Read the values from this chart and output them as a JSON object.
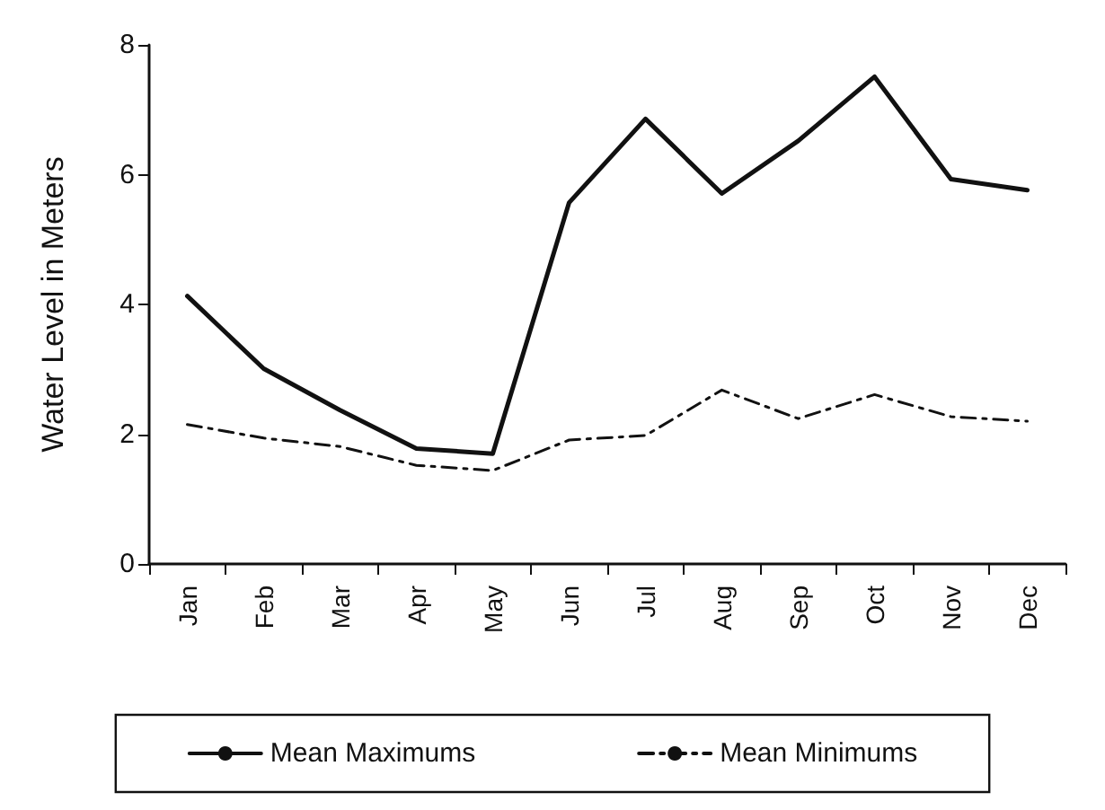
{
  "chart_data": {
    "type": "line",
    "ylabel": "Water Level in Meters",
    "categories": [
      "Jan",
      "Feb",
      "Mar",
      "Apr",
      "May",
      "Jun",
      "Jul",
      "Aug",
      "Sep",
      "Oct",
      "Nov",
      "Dec"
    ],
    "series": [
      {
        "name": "Mean Maximums",
        "color": "#111111",
        "line_style": "solid",
        "values": [
          4.13,
          3.01,
          2.37,
          1.78,
          1.7,
          5.57,
          6.86,
          5.71,
          6.52,
          7.51,
          5.93,
          5.76
        ]
      },
      {
        "name": "Mean Minimums",
        "color": "#111111",
        "line_style": "dashdot",
        "values": [
          2.15,
          1.94,
          1.81,
          1.52,
          1.44,
          1.91,
          1.98,
          2.68,
          2.24,
          2.61,
          2.27,
          2.2
        ]
      }
    ],
    "ylim": [
      0,
      8
    ],
    "yticks": [
      0,
      2,
      4,
      6,
      8
    ],
    "grid": false,
    "legend": "bottom",
    "marker": "none"
  }
}
